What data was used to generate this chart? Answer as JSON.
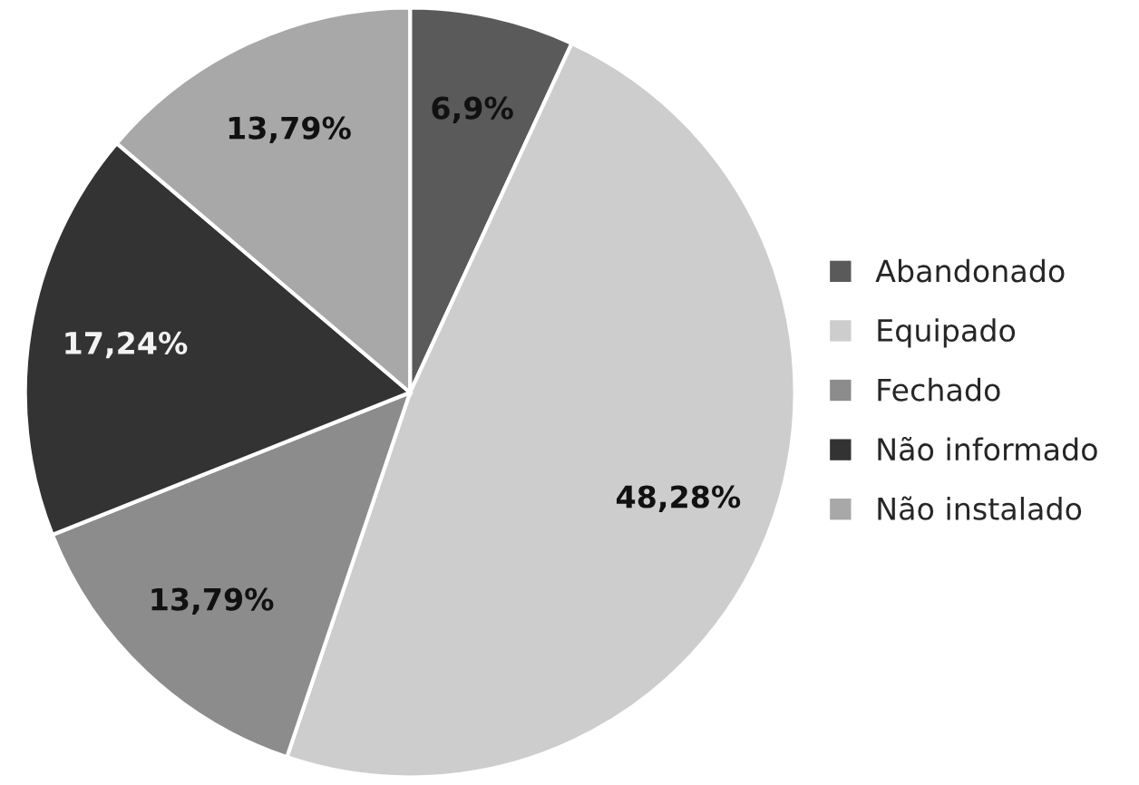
{
  "chart_data": {
    "type": "pie",
    "categories": [
      "Abandonado",
      "Equipado",
      "Fechado",
      "Não informado",
      "Não instalado"
    ],
    "values": [
      6.9,
      48.28,
      13.79,
      17.24,
      13.79
    ],
    "value_labels": [
      "6,9%",
      "48,28%",
      "13,79%",
      "17,24%",
      "13,79%"
    ],
    "colors": [
      "#5a5a5a",
      "#cdcdcd",
      "#8c8c8c",
      "#333333",
      "#a8a8a8"
    ],
    "legend": "right"
  }
}
